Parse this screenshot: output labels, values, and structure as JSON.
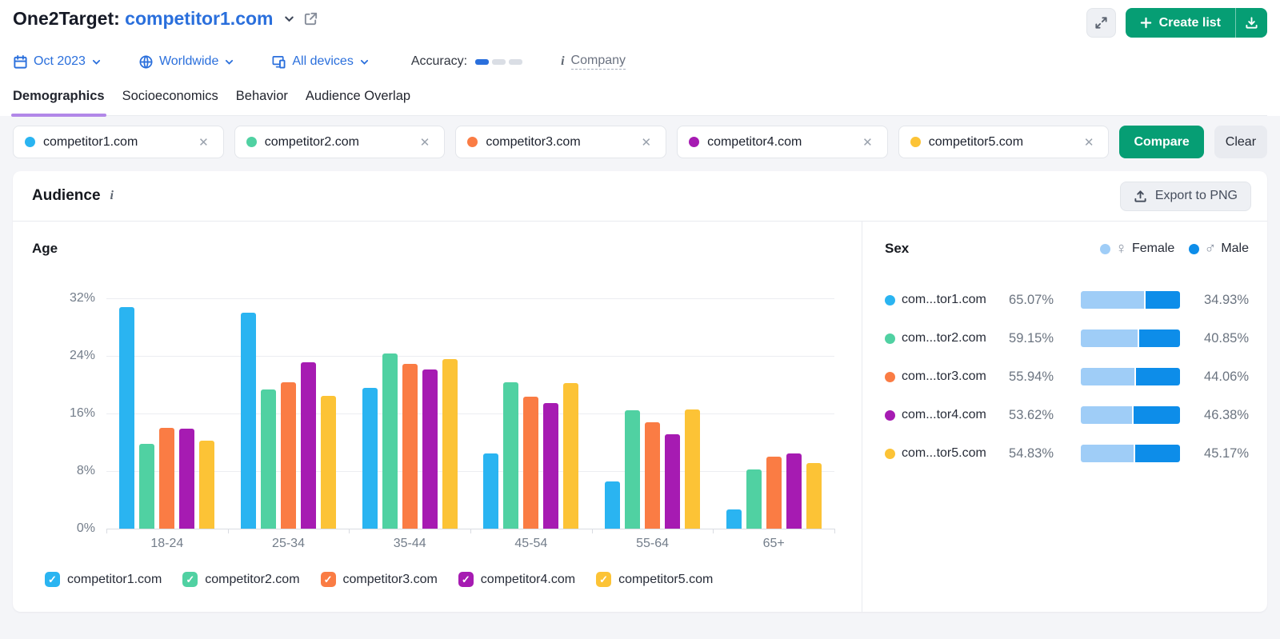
{
  "header": {
    "title_prefix": "One2Target:",
    "domain": "competitor1.com",
    "create_list_label": "Create list"
  },
  "filters": {
    "date": "Oct 2023",
    "location": "Worldwide",
    "devices": "All devices",
    "accuracy_label": "Accuracy:",
    "accuracy_level": 1,
    "accuracy_segments": 3,
    "company_label": "Company"
  },
  "tabs": [
    {
      "label": "Demographics",
      "active": true
    },
    {
      "label": "Socioeconomics",
      "active": false
    },
    {
      "label": "Behavior",
      "active": false
    },
    {
      "label": "Audience Overlap",
      "active": false
    }
  ],
  "competitors": [
    {
      "name": "competitor1.com",
      "color": "#2ab4f1"
    },
    {
      "name": "competitor2.com",
      "color": "#50d1a2"
    },
    {
      "name": "competitor3.com",
      "color": "#fa7c44"
    },
    {
      "name": "competitor4.com",
      "color": "#a61bb2"
    },
    {
      "name": "competitor5.com",
      "color": "#fcc336"
    }
  ],
  "actions": {
    "compare_label": "Compare",
    "clear_label": "Clear",
    "export_label": "Export to PNG"
  },
  "audience": {
    "title": "Audience"
  },
  "chart_data": {
    "type": "bar",
    "title": "Age",
    "categories": [
      "18-24",
      "25-34",
      "35-44",
      "45-54",
      "55-64",
      "65+"
    ],
    "series": [
      {
        "name": "competitor1.com",
        "color": "#2ab4f1",
        "values": [
          30.8,
          30.0,
          19.6,
          10.5,
          6.6,
          2.7
        ]
      },
      {
        "name": "competitor2.com",
        "color": "#50d1a2",
        "values": [
          11.8,
          19.3,
          24.3,
          20.3,
          16.4,
          8.2
        ]
      },
      {
        "name": "competitor3.com",
        "color": "#fa7c44",
        "values": [
          14.0,
          20.3,
          22.9,
          18.3,
          14.8,
          10.0
        ]
      },
      {
        "name": "competitor4.com",
        "color": "#a61bb2",
        "values": [
          13.9,
          23.1,
          22.1,
          17.5,
          13.1,
          10.4
        ]
      },
      {
        "name": "competitor5.com",
        "color": "#fcc336",
        "values": [
          12.2,
          18.4,
          23.6,
          20.2,
          16.6,
          9.1
        ]
      }
    ],
    "ylim": [
      0,
      32
    ],
    "yticks": [
      "32%",
      "24%",
      "16%",
      "8%",
      "0%"
    ],
    "grid": true,
    "legend_position": "bottom"
  },
  "sex_panel": {
    "title": "Sex",
    "legend": {
      "female_label": "Female",
      "male_label": "Male",
      "female_color": "#9fcdf7",
      "male_color": "#0d8de9",
      "female_glyph": "♀",
      "male_glyph": "♂"
    },
    "rows": [
      {
        "name": "com...tor1.com",
        "dot_color": "#2ab4f1",
        "female": "65.07%",
        "male": "34.93%",
        "female_pct": 65.07
      },
      {
        "name": "com...tor2.com",
        "dot_color": "#50d1a2",
        "female": "59.15%",
        "male": "40.85%",
        "female_pct": 59.15
      },
      {
        "name": "com...tor3.com",
        "dot_color": "#fa7c44",
        "female": "55.94%",
        "male": "44.06%",
        "female_pct": 55.94
      },
      {
        "name": "com...tor4.com",
        "dot_color": "#a61bb2",
        "female": "53.62%",
        "male": "46.38%",
        "female_pct": 53.62
      },
      {
        "name": "com...tor5.com",
        "dot_color": "#fcc336",
        "female": "54.83%",
        "male": "45.17%",
        "female_pct": 54.83
      }
    ]
  },
  "icons": {
    "checkmark_glyph": "✓",
    "close_glyph": "✕",
    "info_glyph": "i"
  }
}
